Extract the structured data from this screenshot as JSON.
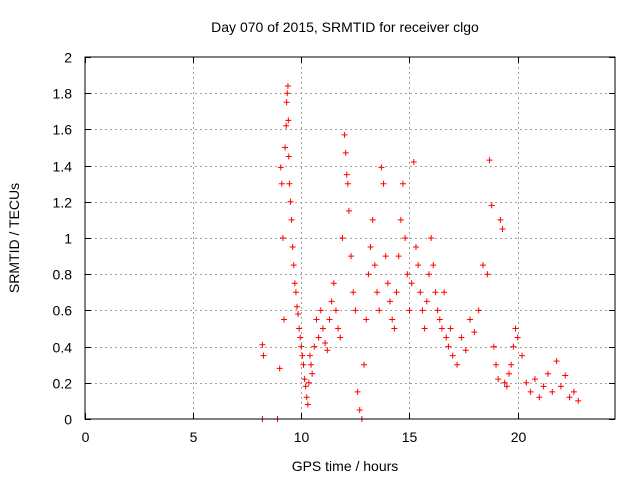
{
  "chart_data": {
    "type": "scatter",
    "title": "Day 070 of 2015, SRMTID for receiver clgo",
    "xlabel": "GPS time / hours",
    "ylabel": "SRMTID / TECUs",
    "xlim": [
      0,
      24.5
    ],
    "ylim": [
      0,
      2
    ],
    "grid": true,
    "marker": "+",
    "color": "#ff0000",
    "x_ticks": [
      0,
      5,
      10,
      15,
      20
    ],
    "x_tick_labels": [
      "0",
      "5",
      "10",
      "15",
      "20"
    ],
    "y_ticks": [
      0,
      0.2,
      0.4,
      0.6,
      0.8,
      1,
      1.2,
      1.4,
      1.6,
      1.8,
      2
    ],
    "y_tick_labels": [
      "0",
      "0.2",
      "0.4",
      "0.6",
      "0.8",
      "1",
      "1.2",
      "1.4",
      "1.6",
      "1.8",
      "2"
    ],
    "series": [
      {
        "name": "SRMTID",
        "points": [
          [
            8.2,
            0.0
          ],
          [
            8.2,
            0.41
          ],
          [
            8.25,
            0.35
          ],
          [
            8.9,
            0.0
          ],
          [
            9.0,
            0.28
          ],
          [
            9.05,
            1.39
          ],
          [
            9.1,
            1.3
          ],
          [
            9.15,
            1.0
          ],
          [
            9.2,
            0.55
          ],
          [
            9.25,
            1.5
          ],
          [
            9.3,
            1.62
          ],
          [
            9.32,
            1.75
          ],
          [
            9.35,
            1.8
          ],
          [
            9.38,
            1.84
          ],
          [
            9.4,
            1.65
          ],
          [
            9.42,
            1.45
          ],
          [
            9.45,
            1.3
          ],
          [
            9.5,
            1.2
          ],
          [
            9.55,
            1.1
          ],
          [
            9.6,
            0.95
          ],
          [
            9.65,
            0.85
          ],
          [
            9.7,
            0.75
          ],
          [
            9.75,
            0.7
          ],
          [
            9.8,
            0.62
          ],
          [
            9.85,
            0.58
          ],
          [
            9.9,
            0.5
          ],
          [
            9.95,
            0.45
          ],
          [
            10.0,
            0.4
          ],
          [
            10.05,
            0.35
          ],
          [
            10.1,
            0.3
          ],
          [
            10.15,
            0.22
          ],
          [
            10.2,
            0.18
          ],
          [
            10.25,
            0.12
          ],
          [
            10.3,
            0.08
          ],
          [
            10.35,
            0.2
          ],
          [
            10.4,
            0.35
          ],
          [
            10.45,
            0.3
          ],
          [
            10.5,
            0.25
          ],
          [
            10.6,
            0.4
          ],
          [
            10.7,
            0.55
          ],
          [
            10.8,
            0.45
          ],
          [
            10.9,
            0.6
          ],
          [
            11.0,
            0.5
          ],
          [
            11.1,
            0.42
          ],
          [
            11.2,
            0.38
          ],
          [
            11.3,
            0.55
          ],
          [
            11.4,
            0.65
          ],
          [
            11.5,
            0.75
          ],
          [
            11.6,
            0.6
          ],
          [
            11.7,
            0.5
          ],
          [
            11.8,
            0.45
          ],
          [
            11.9,
            1.0
          ],
          [
            12.0,
            1.57
          ],
          [
            12.05,
            1.47
          ],
          [
            12.1,
            1.35
          ],
          [
            12.15,
            1.3
          ],
          [
            12.2,
            1.15
          ],
          [
            12.3,
            0.9
          ],
          [
            12.4,
            0.7
          ],
          [
            12.5,
            0.6
          ],
          [
            12.6,
            0.15
          ],
          [
            12.7,
            0.05
          ],
          [
            12.8,
            0.0
          ],
          [
            12.9,
            0.3
          ],
          [
            13.0,
            0.55
          ],
          [
            13.1,
            0.8
          ],
          [
            13.2,
            0.95
          ],
          [
            13.3,
            1.1
          ],
          [
            13.4,
            0.85
          ],
          [
            13.5,
            0.7
          ],
          [
            13.6,
            0.6
          ],
          [
            13.7,
            1.39
          ],
          [
            13.8,
            1.3
          ],
          [
            13.9,
            0.9
          ],
          [
            14.0,
            0.75
          ],
          [
            14.1,
            0.65
          ],
          [
            14.2,
            0.55
          ],
          [
            14.3,
            0.5
          ],
          [
            14.4,
            0.7
          ],
          [
            14.5,
            0.9
          ],
          [
            14.6,
            1.1
          ],
          [
            14.7,
            1.3
          ],
          [
            14.8,
            1.0
          ],
          [
            14.9,
            0.8
          ],
          [
            15.0,
            0.6
          ],
          [
            15.1,
            0.75
          ],
          [
            15.2,
            1.42
          ],
          [
            15.3,
            0.95
          ],
          [
            15.4,
            0.85
          ],
          [
            15.5,
            0.7
          ],
          [
            15.6,
            0.6
          ],
          [
            15.7,
            0.5
          ],
          [
            15.8,
            0.65
          ],
          [
            15.9,
            0.8
          ],
          [
            16.0,
            1.0
          ],
          [
            16.1,
            0.85
          ],
          [
            16.2,
            0.7
          ],
          [
            16.3,
            0.6
          ],
          [
            16.4,
            0.55
          ],
          [
            16.5,
            0.5
          ],
          [
            16.6,
            0.7
          ],
          [
            16.7,
            0.45
          ],
          [
            16.8,
            0.4
          ],
          [
            16.9,
            0.5
          ],
          [
            17.0,
            0.35
          ],
          [
            17.2,
            0.3
          ],
          [
            17.4,
            0.45
          ],
          [
            17.6,
            0.38
          ],
          [
            17.8,
            0.55
          ],
          [
            18.0,
            0.48
          ],
          [
            18.2,
            0.6
          ],
          [
            18.4,
            0.85
          ],
          [
            18.6,
            0.8
          ],
          [
            18.7,
            1.43
          ],
          [
            18.8,
            1.18
          ],
          [
            18.9,
            0.4
          ],
          [
            19.0,
            0.3
          ],
          [
            19.1,
            0.22
          ],
          [
            19.2,
            1.1
          ],
          [
            19.3,
            1.05
          ],
          [
            19.4,
            0.2
          ],
          [
            19.5,
            0.18
          ],
          [
            19.6,
            0.25
          ],
          [
            19.7,
            0.3
          ],
          [
            19.8,
            0.4
          ],
          [
            19.9,
            0.5
          ],
          [
            20.0,
            0.45
          ],
          [
            20.2,
            0.35
          ],
          [
            20.4,
            0.2
          ],
          [
            20.6,
            0.15
          ],
          [
            20.8,
            0.22
          ],
          [
            21.0,
            0.12
          ],
          [
            21.2,
            0.18
          ],
          [
            21.4,
            0.25
          ],
          [
            21.6,
            0.15
          ],
          [
            21.8,
            0.32
          ],
          [
            22.0,
            0.18
          ],
          [
            22.2,
            0.24
          ],
          [
            22.4,
            0.12
          ],
          [
            22.6,
            0.15
          ],
          [
            22.8,
            0.1
          ]
        ]
      }
    ]
  }
}
